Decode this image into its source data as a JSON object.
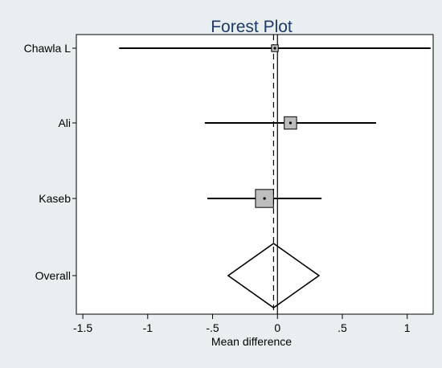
{
  "chart_data": {
    "type": "forest",
    "title": "Forest Plot",
    "xlabel": "Mean difference",
    "xlim": [
      -1.55,
      1.2
    ],
    "x_ticks": [
      {
        "value": -1.5,
        "label": "-1.5"
      },
      {
        "value": -1,
        "label": "-1"
      },
      {
        "value": -0.5,
        "label": "-.5"
      },
      {
        "value": 0,
        "label": "0"
      },
      {
        "value": 0.5,
        "label": ".5"
      },
      {
        "value": 1,
        "label": "1"
      }
    ],
    "null_line": 0,
    "overall_line": -0.03,
    "studies": [
      {
        "label": "Chawla L",
        "estimate": -0.02,
        "lower": -1.22,
        "upper": 1.18,
        "box_weight": 0.3
      },
      {
        "label": "Ali",
        "estimate": 0.1,
        "lower": -0.56,
        "upper": 0.76,
        "box_weight": 0.55
      },
      {
        "label": "Kaseb",
        "estimate": -0.1,
        "lower": -0.54,
        "upper": 0.34,
        "box_weight": 0.8
      }
    ],
    "overall": {
      "label": "Overall",
      "estimate": -0.03,
      "lower": -0.38,
      "upper": 0.32
    },
    "colors": {
      "background": "#e9eef1",
      "plot_area": "#ffffff",
      "box_fill": "#bdbdbd",
      "title": "#1f3a68"
    }
  }
}
